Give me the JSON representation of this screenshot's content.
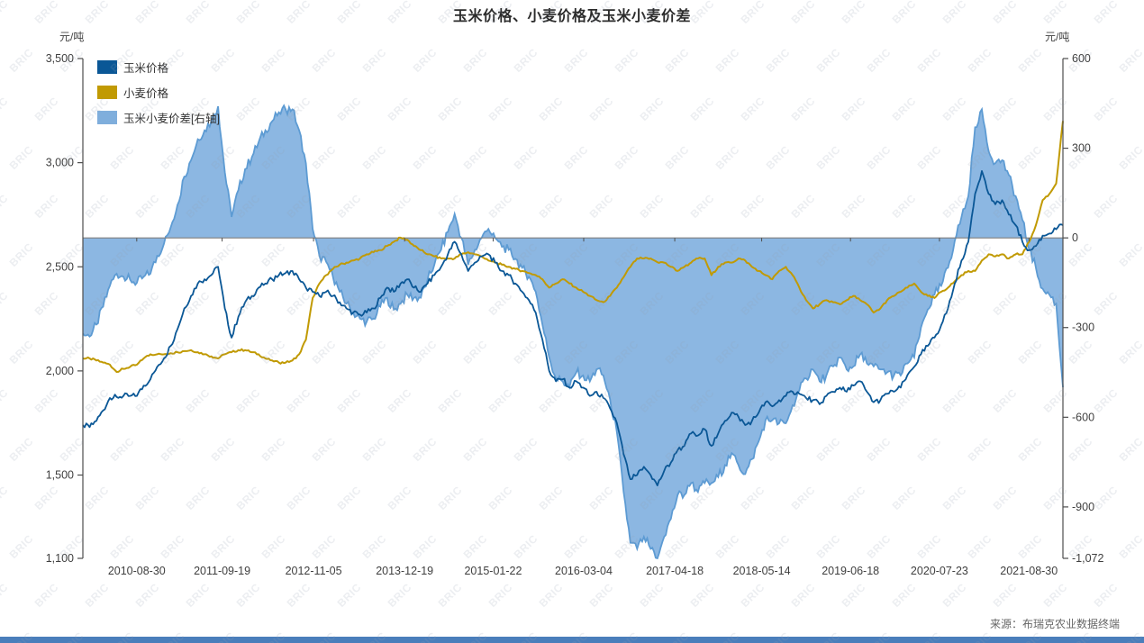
{
  "title": "玉米价格、小麦价格及玉米小麦价差",
  "watermark": {
    "text": "BRIC"
  },
  "source": {
    "text": "来源：布瑞克农业数据终端"
  },
  "colors": {
    "corn": "#0A5796",
    "wheat": "#C19A03",
    "spread_fill": "#8CB7E2",
    "spread_line": "#5D9BD3",
    "spread_legend": "#7FAEDC",
    "zero_line": "#7f7f7f",
    "axis": "#4d4d4d",
    "tick_text": "#3f3f3f",
    "footer_bar": "#4A7EBB"
  },
  "legend": [
    {
      "label": "玉米价格",
      "color": "#0A5796"
    },
    {
      "label": "小麦价格",
      "color": "#C19A03"
    },
    {
      "label": "玉米小麦价差[右轴]",
      "color": "#7FAEDC"
    }
  ],
  "left_axis": {
    "unit": "元/吨",
    "min": 1100,
    "max": 3500,
    "ticks": [
      {
        "value": 3500,
        "label": "3,500"
      },
      {
        "value": 3000,
        "label": "3,000"
      },
      {
        "value": 2500,
        "label": "2,500"
      },
      {
        "value": 2000,
        "label": "2,000"
      },
      {
        "value": 1500,
        "label": "1,500"
      },
      {
        "value": 1100,
        "label": "1,100"
      }
    ]
  },
  "right_axis": {
    "unit": "元/吨",
    "min": -1072,
    "max": 600,
    "ticks": [
      {
        "value": 600,
        "label": "600"
      },
      {
        "value": 300,
        "label": "300"
      },
      {
        "value": 0,
        "label": "0"
      },
      {
        "value": -300,
        "label": "-300"
      },
      {
        "value": -600,
        "label": "-600"
      },
      {
        "value": -900,
        "label": "-900"
      },
      {
        "value": -1072,
        "label": "-1,072"
      }
    ]
  },
  "chart_data": {
    "type": "line",
    "note": "monthly points 2010-01 to 2022-02 read off chart; spread plotted as area on right axis",
    "x_ticks": [
      {
        "i": 7.97,
        "label": "2010-08-30"
      },
      {
        "i": 20.6,
        "label": "2011-09-19"
      },
      {
        "i": 34.13,
        "label": "2012-11-05"
      },
      {
        "i": 47.6,
        "label": "2013-12-19"
      },
      {
        "i": 60.7,
        "label": "2015-01-22"
      },
      {
        "i": 74.1,
        "label": "2016-03-04"
      },
      {
        "i": 87.57,
        "label": "2017-04-18"
      },
      {
        "i": 100.43,
        "label": "2018-05-14"
      },
      {
        "i": 113.57,
        "label": "2019-06-18"
      },
      {
        "i": 126.73,
        "label": "2020-07-23"
      },
      {
        "i": 139.97,
        "label": "2021-08-30"
      }
    ],
    "series": [
      {
        "name": "玉米价格",
        "axis": "left",
        "kind": "line",
        "values": [
          1740,
          1730,
          1760,
          1810,
          1870,
          1875,
          1880,
          1880,
          1880,
          1930,
          1960,
          2020,
          2060,
          2120,
          2200,
          2300,
          2360,
          2420,
          2440,
          2460,
          2500,
          2300,
          2160,
          2260,
          2330,
          2360,
          2400,
          2420,
          2440,
          2460,
          2470,
          2480,
          2440,
          2400,
          2380,
          2360,
          2380,
          2360,
          2330,
          2300,
          2280,
          2270,
          2280,
          2300,
          2350,
          2400,
          2380,
          2420,
          2440,
          2400,
          2380,
          2420,
          2460,
          2500,
          2560,
          2620,
          2560,
          2480,
          2520,
          2550,
          2560,
          2520,
          2480,
          2460,
          2420,
          2380,
          2340,
          2280,
          2150,
          2000,
          1950,
          1960,
          1920,
          1950,
          1920,
          1880,
          1900,
          1870,
          1820,
          1750,
          1600,
          1480,
          1500,
          1540,
          1500,
          1450,
          1520,
          1560,
          1620,
          1640,
          1700,
          1690,
          1720,
          1640,
          1700,
          1760,
          1800,
          1780,
          1740,
          1760,
          1800,
          1850,
          1830,
          1860,
          1880,
          1900,
          1890,
          1870,
          1860,
          1840,
          1880,
          1900,
          1920,
          1900,
          1930,
          1950,
          1900,
          1850,
          1860,
          1890,
          1900,
          1920,
          1980,
          2020,
          2080,
          2120,
          2160,
          2220,
          2300,
          2420,
          2530,
          2620,
          2850,
          2960,
          2850,
          2800,
          2820,
          2750,
          2700,
          2620,
          2580,
          2600,
          2650,
          2660,
          2680,
          2700
        ]
      },
      {
        "name": "小麦价格",
        "axis": "left",
        "kind": "line",
        "values": [
          2060,
          2060,
          2050,
          2040,
          2030,
          1995,
          2010,
          2020,
          2030,
          2060,
          2080,
          2080,
          2080,
          2085,
          2090,
          2095,
          2100,
          2090,
          2080,
          2070,
          2060,
          2080,
          2090,
          2100,
          2100,
          2090,
          2080,
          2060,
          2050,
          2040,
          2040,
          2050,
          2080,
          2150,
          2350,
          2420,
          2460,
          2490,
          2510,
          2520,
          2530,
          2540,
          2560,
          2570,
          2580,
          2600,
          2620,
          2640,
          2630,
          2600,
          2580,
          2560,
          2550,
          2540,
          2540,
          2540,
          2560,
          2570,
          2560,
          2550,
          2530,
          2520,
          2510,
          2500,
          2490,
          2480,
          2470,
          2460,
          2440,
          2400,
          2420,
          2440,
          2420,
          2400,
          2380,
          2360,
          2340,
          2330,
          2360,
          2400,
          2450,
          2500,
          2540,
          2540,
          2540,
          2522,
          2520,
          2500,
          2480,
          2500,
          2520,
          2540,
          2540,
          2460,
          2500,
          2520,
          2520,
          2540,
          2530,
          2500,
          2480,
          2460,
          2440,
          2480,
          2500,
          2460,
          2400,
          2340,
          2300,
          2320,
          2340,
          2330,
          2320,
          2340,
          2360,
          2340,
          2320,
          2280,
          2300,
          2340,
          2360,
          2380,
          2400,
          2420,
          2380,
          2360,
          2350,
          2380,
          2400,
          2430,
          2460,
          2480,
          2480,
          2530,
          2560,
          2550,
          2560,
          2540,
          2560,
          2560,
          2620,
          2700,
          2820,
          2850,
          2900,
          3200
        ]
      },
      {
        "name": "玉米小麦价差[右轴]",
        "axis": "right",
        "kind": "area",
        "values": [
          -320,
          -330,
          -290,
          -230,
          -160,
          -120,
          -130,
          -140,
          -150,
          -130,
          -120,
          -60,
          -20,
          35,
          110,
          205,
          260,
          330,
          360,
          390,
          440,
          220,
          70,
          160,
          230,
          270,
          320,
          360,
          390,
          420,
          430,
          430,
          360,
          250,
          30,
          -60,
          -80,
          -130,
          -180,
          -220,
          -250,
          -270,
          -280,
          -270,
          -230,
          -200,
          -240,
          -220,
          -190,
          -200,
          -200,
          -140,
          -90,
          -40,
          20,
          80,
          0,
          -90,
          -40,
          0,
          30,
          0,
          -30,
          -40,
          -70,
          -100,
          -130,
          -180,
          -290,
          -400,
          -470,
          -480,
          -500,
          -450,
          -460,
          -480,
          -440,
          -460,
          -540,
          -650,
          -850,
          -1020,
          -1040,
          -1000,
          -1040,
          -1072,
          -1000,
          -940,
          -860,
          -860,
          -820,
          -850,
          -820,
          -820,
          -800,
          -760,
          -720,
          -760,
          -790,
          -740,
          -680,
          -610,
          -610,
          -620,
          -620,
          -560,
          -510,
          -470,
          -440,
          -480,
          -460,
          -430,
          -400,
          -440,
          -430,
          -390,
          -420,
          -430,
          -440,
          -450,
          -460,
          -460,
          -420,
          -400,
          -300,
          -240,
          -190,
          -160,
          -100,
          -10,
          70,
          140,
          370,
          430,
          290,
          250,
          260,
          210,
          140,
          60,
          -40,
          -100,
          -170,
          -190,
          -220,
          -500
        ]
      }
    ]
  }
}
